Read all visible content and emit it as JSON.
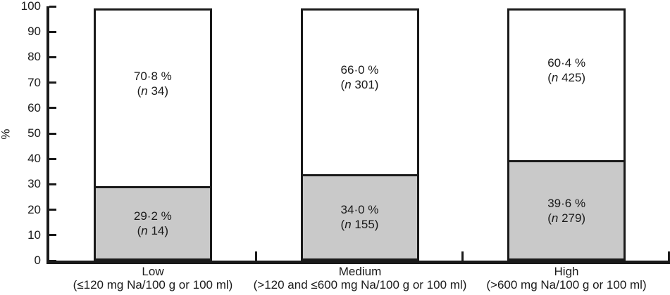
{
  "chart_data": {
    "type": "bar",
    "subtype": "stacked-percentage",
    "title": "",
    "xlabel": "",
    "ylabel": "%",
    "ylim": [
      0,
      100
    ],
    "yticks": [
      0,
      10,
      20,
      30,
      40,
      50,
      60,
      70,
      80,
      90,
      100
    ],
    "grid": false,
    "legend": "none",
    "bar_fill_colors": {
      "lower": "#c9c9c9",
      "upper": "#ffffff"
    },
    "line_color": "#1a1a1a",
    "categories": [
      {
        "label": "Low",
        "sublabel": "(≤120 mg Na/100 g or 100 ml)"
      },
      {
        "label": "Medium",
        "sublabel": "(>120 and ≤600 mg Na/100 g or 100 ml)"
      },
      {
        "label": "High",
        "sublabel": "(>600 mg Na/100 g or 100 ml)"
      }
    ],
    "series": [
      {
        "name": "lower grey segment",
        "values": [
          29.2,
          34.0,
          39.6
        ],
        "n": [
          14,
          155,
          279
        ]
      },
      {
        "name": "upper white segment",
        "values": [
          70.8,
          66.0,
          60.4
        ],
        "n": [
          34,
          301,
          425
        ]
      }
    ],
    "bar_labels": [
      {
        "top": {
          "pct": "70·8 %",
          "paren_open": "(",
          "n_var": "n",
          "n_rest": " 34)"
        },
        "bottom": {
          "pct": "29·2 %",
          "paren_open": "(",
          "n_var": "n",
          "n_rest": " 14)"
        }
      },
      {
        "top": {
          "pct": "66·0 %",
          "paren_open": "(",
          "n_var": "n",
          "n_rest": " 301)"
        },
        "bottom": {
          "pct": "34·0 %",
          "paren_open": "(",
          "n_var": "n",
          "n_rest": " 155)"
        }
      },
      {
        "top": {
          "pct": "60·4 %",
          "paren_open": "(",
          "n_var": "n",
          "n_rest": " 425)"
        },
        "bottom": {
          "pct": "39·6 %",
          "paren_open": "(",
          "n_var": "n",
          "n_rest": " 279)"
        }
      }
    ]
  }
}
